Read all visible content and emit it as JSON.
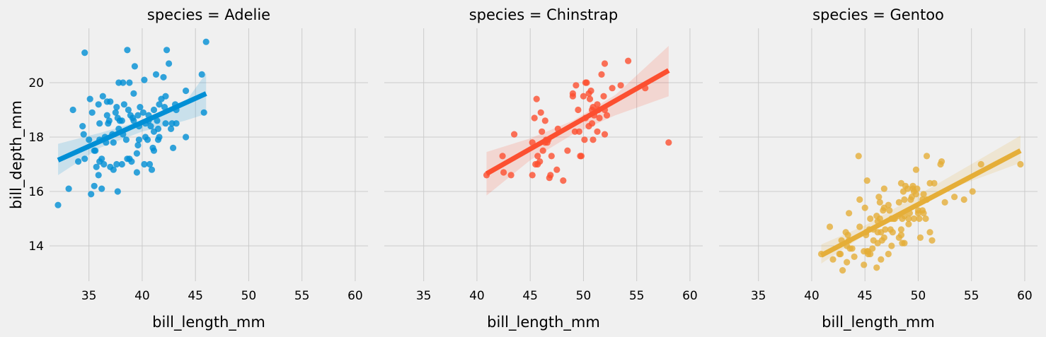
{
  "chart_data": {
    "type": "scatter",
    "facet_variable": "species",
    "xlabel": "bill_length_mm",
    "ylabel": "bill_depth_mm",
    "xlim": [
      31.3,
      61.2
    ],
    "ylim": [
      12.7,
      22.0
    ],
    "xticks": [
      35,
      40,
      45,
      50,
      55,
      60
    ],
    "yticks": [
      14,
      16,
      18,
      20
    ],
    "grid": true,
    "sharey": true,
    "panels": [
      {
        "title": "species = Adelie",
        "color": "#008fd5",
        "regression": {
          "x": [
            32.1,
            46.0
          ],
          "y": [
            17.15,
            19.6
          ]
        },
        "ci": {
          "x": [
            32.1,
            36,
            40,
            44,
            46.0
          ],
          "lower": [
            16.6,
            17.6,
            18.2,
            18.6,
            18.85
          ],
          "upper": [
            17.75,
            18.15,
            18.6,
            19.25,
            20.35
          ]
        },
        "points": [
          [
            32.1,
            15.5
          ],
          [
            33.1,
            16.1
          ],
          [
            33.5,
            19.0
          ],
          [
            34.0,
            17.1
          ],
          [
            34.4,
            18.4
          ],
          [
            34.5,
            18.1
          ],
          [
            34.6,
            21.1
          ],
          [
            34.6,
            17.2
          ],
          [
            35.0,
            17.9
          ],
          [
            35.1,
            19.4
          ],
          [
            35.2,
            15.9
          ],
          [
            35.3,
            18.9
          ],
          [
            35.5,
            17.5
          ],
          [
            35.5,
            16.2
          ],
          [
            35.6,
            17.5
          ],
          [
            35.7,
            16.9
          ],
          [
            35.9,
            16.6
          ],
          [
            35.9,
            19.2
          ],
          [
            36.0,
            17.9
          ],
          [
            36.0,
            18.5
          ],
          [
            36.0,
            17.1
          ],
          [
            36.2,
            16.1
          ],
          [
            36.2,
            17.2
          ],
          [
            36.3,
            19.5
          ],
          [
            36.4,
            17.0
          ],
          [
            36.5,
            18.0
          ],
          [
            36.6,
            17.8
          ],
          [
            36.7,
            19.3
          ],
          [
            36.7,
            18.8
          ],
          [
            36.8,
            18.5
          ],
          [
            36.9,
            18.6
          ],
          [
            37.0,
            16.9
          ],
          [
            37.0,
            19.3
          ],
          [
            37.2,
            18.1
          ],
          [
            37.3,
            16.8
          ],
          [
            37.3,
            17.8
          ],
          [
            37.5,
            18.9
          ],
          [
            37.6,
            17.0
          ],
          [
            37.6,
            19.1
          ],
          [
            37.7,
            18.7
          ],
          [
            37.7,
            16.0
          ],
          [
            37.8,
            20.0
          ],
          [
            37.8,
            18.3
          ],
          [
            37.9,
            18.6
          ],
          [
            38.1,
            18.6
          ],
          [
            38.1,
            17.0
          ],
          [
            38.2,
            18.1
          ],
          [
            38.2,
            20.0
          ],
          [
            38.3,
            19.2
          ],
          [
            38.5,
            17.9
          ],
          [
            38.6,
            21.2
          ],
          [
            38.6,
            17.2
          ],
          [
            38.7,
            19.0
          ],
          [
            38.8,
            20.0
          ],
          [
            38.8,
            17.2
          ],
          [
            38.9,
            18.8
          ],
          [
            39.0,
            17.1
          ],
          [
            39.1,
            18.7
          ],
          [
            39.2,
            19.6
          ],
          [
            39.2,
            18.6
          ],
          [
            39.3,
            20.6
          ],
          [
            39.5,
            17.4
          ],
          [
            39.5,
            16.7
          ],
          [
            39.6,
            17.7
          ],
          [
            39.6,
            18.8
          ],
          [
            39.7,
            17.9
          ],
          [
            39.7,
            18.4
          ],
          [
            39.8,
            19.1
          ],
          [
            40.1,
            18.9
          ],
          [
            40.2,
            17.0
          ],
          [
            40.2,
            20.1
          ],
          [
            40.3,
            18.0
          ],
          [
            40.3,
            18.5
          ],
          [
            40.5,
            17.9
          ],
          [
            40.6,
            18.8
          ],
          [
            40.6,
            18.6
          ],
          [
            40.7,
            17.0
          ],
          [
            40.8,
            18.4
          ],
          [
            40.9,
            16.8
          ],
          [
            41.0,
            17.6
          ],
          [
            41.1,
            18.2
          ],
          [
            41.1,
            19.0
          ],
          [
            41.1,
            17.5
          ],
          [
            41.3,
            20.3
          ],
          [
            41.4,
            18.6
          ],
          [
            41.5,
            18.3
          ],
          [
            41.5,
            17.9
          ],
          [
            41.6,
            18.0
          ],
          [
            41.6,
            19.2
          ],
          [
            41.8,
            19.4
          ],
          [
            42.0,
            20.2
          ],
          [
            42.1,
            19.1
          ],
          [
            42.2,
            18.5
          ],
          [
            42.2,
            19.5
          ],
          [
            42.3,
            21.2
          ],
          [
            42.5,
            20.7
          ],
          [
            42.7,
            18.3
          ],
          [
            42.8,
            18.5
          ],
          [
            42.9,
            17.6
          ],
          [
            43.1,
            19.2
          ],
          [
            43.2,
            19.0
          ],
          [
            43.2,
            18.5
          ],
          [
            44.1,
            19.7
          ],
          [
            44.1,
            18.0
          ],
          [
            45.6,
            20.3
          ],
          [
            45.8,
            18.9
          ],
          [
            46.0,
            21.5
          ]
        ]
      },
      {
        "title": "species = Chinstrap",
        "color": "#fc4f30",
        "regression": {
          "x": [
            40.9,
            58.0
          ],
          "y": [
            16.65,
            20.45
          ]
        },
        "ci": {
          "x": [
            40.9,
            45,
            49,
            53,
            58.0
          ],
          "lower": [
            15.85,
            17.15,
            18.1,
            18.8,
            19.5
          ],
          "upper": [
            17.45,
            17.95,
            18.6,
            19.55,
            21.35
          ]
        },
        "points": [
          [
            40.9,
            16.6
          ],
          [
            42.4,
            17.3
          ],
          [
            42.5,
            16.7
          ],
          [
            43.2,
            16.6
          ],
          [
            43.5,
            18.1
          ],
          [
            45.2,
            16.6
          ],
          [
            45.2,
            17.8
          ],
          [
            45.4,
            18.7
          ],
          [
            45.5,
            17.0
          ],
          [
            45.6,
            19.4
          ],
          [
            45.7,
            17.3
          ],
          [
            45.7,
            17.0
          ],
          [
            45.9,
            17.1
          ],
          [
            46.0,
            18.9
          ],
          [
            46.1,
            18.2
          ],
          [
            46.2,
            17.5
          ],
          [
            46.4,
            18.6
          ],
          [
            46.4,
            17.8
          ],
          [
            46.5,
            17.9
          ],
          [
            46.6,
            17.8
          ],
          [
            46.7,
            17.9
          ],
          [
            46.8,
            16.5
          ],
          [
            46.9,
            16.6
          ],
          [
            47.0,
            17.3
          ],
          [
            47.5,
            16.8
          ],
          [
            47.6,
            18.3
          ],
          [
            48.1,
            16.4
          ],
          [
            48.5,
            17.5
          ],
          [
            49.0,
            19.5
          ],
          [
            49.0,
            19.6
          ],
          [
            49.2,
            18.2
          ],
          [
            49.3,
            19.9
          ],
          [
            49.5,
            19.0
          ],
          [
            49.6,
            18.2
          ],
          [
            49.7,
            17.3
          ],
          [
            49.8,
            17.3
          ],
          [
            50.0,
            19.5
          ],
          [
            50.1,
            17.9
          ],
          [
            50.2,
            18.7
          ],
          [
            50.2,
            20.0
          ],
          [
            50.3,
            20.0
          ],
          [
            50.5,
            18.4
          ],
          [
            50.5,
            19.6
          ],
          [
            50.6,
            19.4
          ],
          [
            50.7,
            19.7
          ],
          [
            50.8,
            18.5
          ],
          [
            50.8,
            19.0
          ],
          [
            50.9,
            19.1
          ],
          [
            50.9,
            17.9
          ],
          [
            51.0,
            18.8
          ],
          [
            51.3,
            19.2
          ],
          [
            51.3,
            18.2
          ],
          [
            51.4,
            19.0
          ],
          [
            51.5,
            18.7
          ],
          [
            51.7,
            20.3
          ],
          [
            51.9,
            19.5
          ],
          [
            52.0,
            18.1
          ],
          [
            52.0,
            20.7
          ],
          [
            52.0,
            19.0
          ],
          [
            52.2,
            18.8
          ],
          [
            52.7,
            19.8
          ],
          [
            53.5,
            19.9
          ],
          [
            54.2,
            20.8
          ],
          [
            55.8,
            19.8
          ],
          [
            58.0,
            17.8
          ]
        ]
      },
      {
        "title": "species = Gentoo",
        "color": "#e5ae38",
        "regression": {
          "x": [
            40.9,
            59.6
          ],
          "y": [
            13.65,
            17.5
          ]
        },
        "ci": {
          "x": [
            40.9,
            45,
            49,
            53,
            59.6
          ],
          "lower": [
            13.35,
            14.4,
            15.35,
            16.1,
            17.05
          ],
          "upper": [
            14.05,
            14.75,
            15.65,
            16.55,
            18.05
          ]
        },
        "points": [
          [
            40.9,
            13.7
          ],
          [
            41.7,
            14.7
          ],
          [
            42.0,
            13.5
          ],
          [
            42.6,
            13.7
          ],
          [
            42.7,
            13.7
          ],
          [
            42.8,
            14.2
          ],
          [
            42.9,
            13.1
          ],
          [
            43.2,
            14.5
          ],
          [
            43.3,
            13.4
          ],
          [
            43.3,
            14.0
          ],
          [
            43.4,
            14.4
          ],
          [
            43.5,
            14.2
          ],
          [
            43.5,
            15.2
          ],
          [
            43.6,
            13.9
          ],
          [
            43.8,
            13.9
          ],
          [
            44.0,
            13.6
          ],
          [
            44.4,
            17.3
          ],
          [
            44.5,
            14.7
          ],
          [
            44.5,
            15.7
          ],
          [
            44.9,
            13.3
          ],
          [
            44.9,
            13.8
          ],
          [
            45.0,
            15.4
          ],
          [
            45.1,
            14.5
          ],
          [
            45.1,
            14.4
          ],
          [
            45.2,
            13.8
          ],
          [
            45.2,
            16.4
          ],
          [
            45.3,
            13.8
          ],
          [
            45.3,
            13.7
          ],
          [
            45.4,
            14.6
          ],
          [
            45.5,
            13.7
          ],
          [
            45.5,
            15.0
          ],
          [
            45.7,
            13.9
          ],
          [
            45.8,
            14.6
          ],
          [
            45.8,
            14.2
          ],
          [
            46.1,
            13.2
          ],
          [
            46.1,
            15.1
          ],
          [
            46.2,
            14.5
          ],
          [
            46.2,
            14.9
          ],
          [
            46.2,
            14.1
          ],
          [
            46.3,
            15.8
          ],
          [
            46.4,
            15.0
          ],
          [
            46.4,
            15.6
          ],
          [
            46.5,
            14.5
          ],
          [
            46.5,
            13.5
          ],
          [
            46.6,
            14.2
          ],
          [
            46.7,
            15.3
          ],
          [
            46.8,
            14.3
          ],
          [
            46.8,
            15.4
          ],
          [
            46.8,
            16.1
          ],
          [
            46.9,
            14.6
          ],
          [
            47.2,
            13.7
          ],
          [
            47.2,
            15.5
          ],
          [
            47.3,
            15.3
          ],
          [
            47.4,
            14.6
          ],
          [
            47.5,
            14.0
          ],
          [
            47.5,
            15.0
          ],
          [
            47.6,
            14.5
          ],
          [
            47.7,
            15.0
          ],
          [
            47.8,
            15.0
          ],
          [
            48.1,
            15.1
          ],
          [
            48.2,
            14.3
          ],
          [
            48.2,
            15.6
          ],
          [
            48.4,
            14.4
          ],
          [
            48.4,
            16.3
          ],
          [
            48.4,
            14.6
          ],
          [
            48.5,
            14.1
          ],
          [
            48.5,
            15.0
          ],
          [
            48.6,
            16.0
          ],
          [
            48.7,
            14.1
          ],
          [
            48.7,
            15.1
          ],
          [
            48.7,
            15.7
          ],
          [
            48.8,
            16.2
          ],
          [
            49.0,
            16.1
          ],
          [
            49.1,
            14.8
          ],
          [
            49.1,
            15.0
          ],
          [
            49.2,
            15.2
          ],
          [
            49.3,
            15.7
          ],
          [
            49.4,
            15.8
          ],
          [
            49.5,
            16.1
          ],
          [
            49.5,
            16.2
          ],
          [
            49.6,
            16.0
          ],
          [
            49.6,
            15.0
          ],
          [
            49.8,
            15.9
          ],
          [
            49.8,
            16.8
          ],
          [
            49.9,
            16.1
          ],
          [
            50.0,
            15.3
          ],
          [
            50.0,
            15.2
          ],
          [
            50.1,
            15.0
          ],
          [
            50.2,
            14.3
          ],
          [
            50.4,
            15.3
          ],
          [
            50.4,
            15.7
          ],
          [
            50.5,
            15.2
          ],
          [
            50.5,
            15.9
          ],
          [
            50.7,
            15.0
          ],
          [
            50.8,
            15.7
          ],
          [
            50.8,
            17.3
          ],
          [
            51.1,
            14.5
          ],
          [
            51.1,
            16.3
          ],
          [
            51.3,
            14.2
          ],
          [
            51.5,
            16.3
          ],
          [
            52.1,
            17.0
          ],
          [
            52.2,
            17.1
          ],
          [
            52.5,
            15.6
          ],
          [
            53.4,
            15.8
          ],
          [
            54.3,
            15.7
          ],
          [
            55.1,
            16.0
          ],
          [
            55.9,
            17.0
          ],
          [
            59.6,
            17.0
          ]
        ]
      }
    ]
  }
}
